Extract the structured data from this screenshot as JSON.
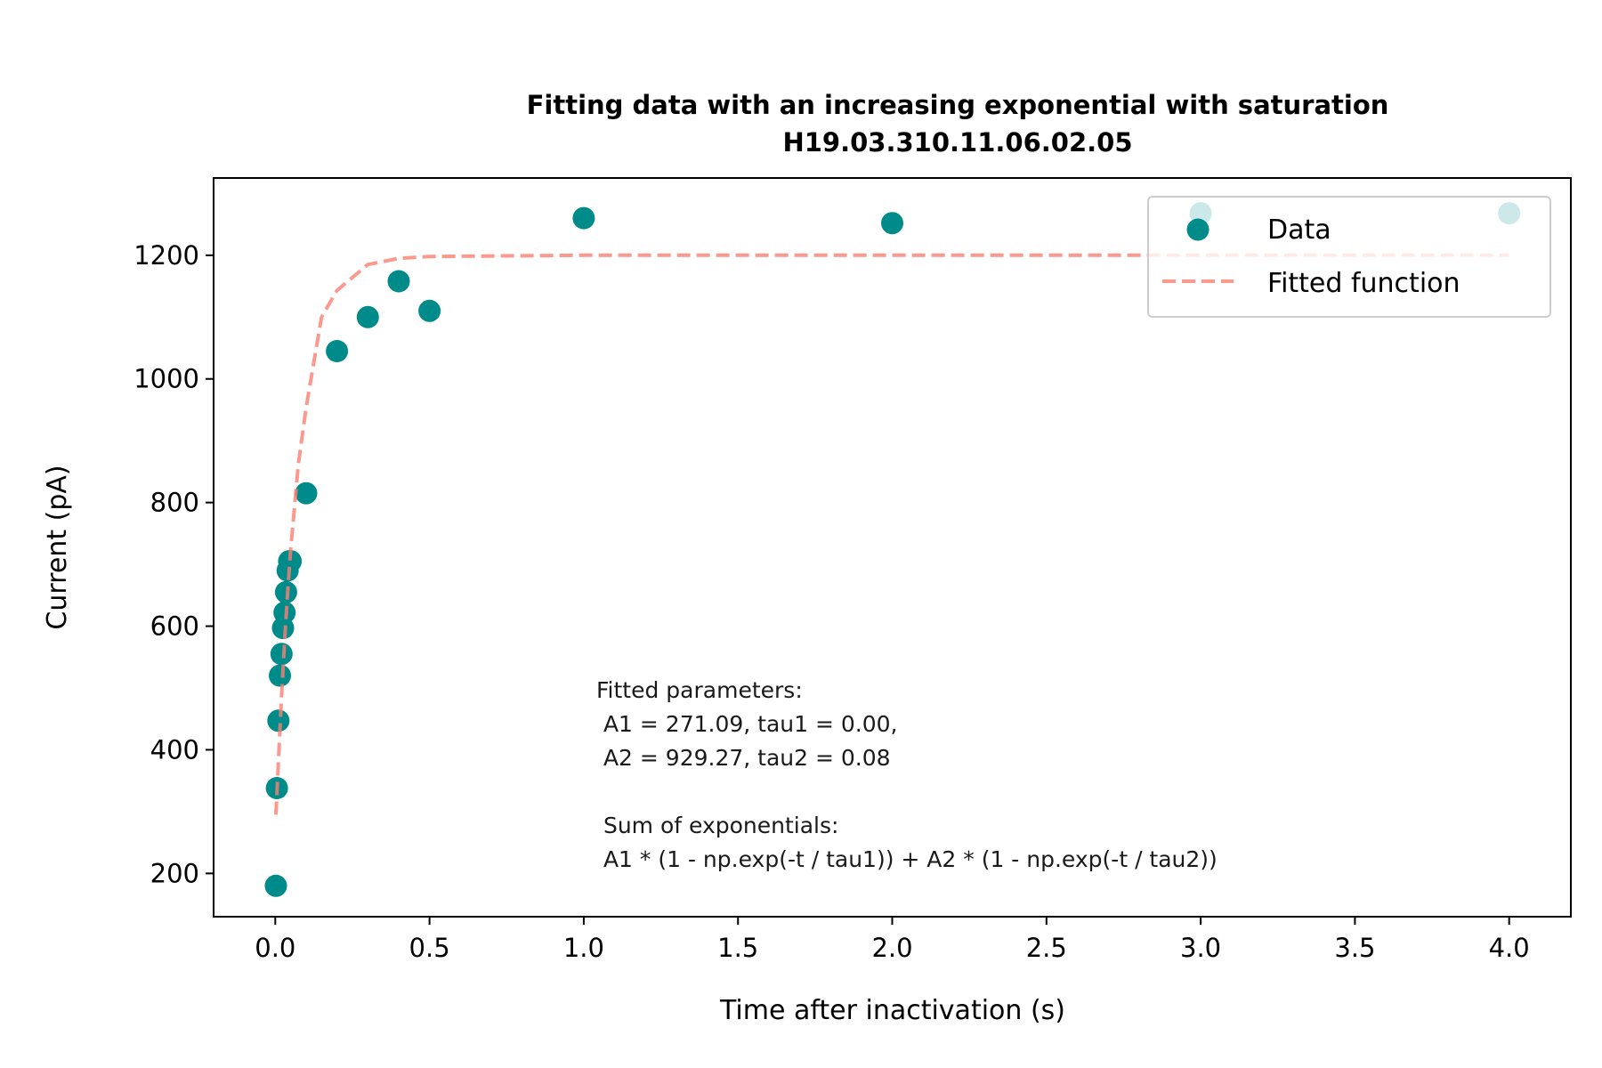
{
  "chart_data": {
    "type": "scatter",
    "title": "Fitting data with an increasing exponential with saturation",
    "subtitle": "H19.03.310.11.06.02.05",
    "xlabel": "Time after inactivation (s)",
    "ylabel": "Current (pA)",
    "xlim": [
      -0.2,
      4.2
    ],
    "ylim": [
      130,
      1325
    ],
    "xticks": [
      0.0,
      0.5,
      1.0,
      1.5,
      2.0,
      2.5,
      3.0,
      3.5,
      4.0
    ],
    "xtick_labels": [
      "0.0",
      "0.5",
      "1.0",
      "1.5",
      "2.0",
      "2.5",
      "3.0",
      "3.5",
      "4.0"
    ],
    "yticks": [
      200,
      400,
      600,
      800,
      1000,
      1200
    ],
    "ytick_labels": [
      "200",
      "400",
      "600",
      "800",
      "1000",
      "1200"
    ],
    "grid": false,
    "legend_position": "upper-right",
    "series": [
      {
        "name": "Data",
        "kind": "scatter",
        "color": "#008b8b",
        "x": [
          0.002,
          0.005,
          0.01,
          0.015,
          0.02,
          0.025,
          0.03,
          0.035,
          0.04,
          0.045,
          0.05,
          0.1,
          0.2,
          0.3,
          0.4,
          0.5,
          1.0,
          2.0,
          3.0,
          4.0
        ],
        "y": [
          180,
          338,
          447,
          520,
          555,
          597,
          622,
          655,
          690,
          705,
          705,
          815,
          1045,
          1100,
          1158,
          1110,
          1260,
          1252,
          1268,
          1268
        ]
      },
      {
        "name": "Fitted function",
        "kind": "line",
        "style": "dashed",
        "color": "#fa8072",
        "x": [
          0.002,
          0.005,
          0.01,
          0.02,
          0.03,
          0.04,
          0.05,
          0.075,
          0.1,
          0.15,
          0.2,
          0.3,
          0.4,
          0.5,
          1.0,
          2.0,
          3.0,
          4.0
        ],
        "y": [
          295,
          327,
          380,
          485,
          574,
          655,
          724,
          863,
          954,
          1100,
          1143,
          1185,
          1195,
          1198,
          1200,
          1200,
          1200,
          1200
        ]
      }
    ],
    "annotation": {
      "lines": [
        "Fitted parameters:",
        " A1 = 271.09, tau1 = 0.00,",
        " A2 = 929.27, tau2 = 0.08",
        "",
        " Sum of exponentials:",
        " A1 * (1 - np.exp(-t / tau1)) + A2 * (1 - np.exp(-t / tau2))"
      ]
    }
  }
}
